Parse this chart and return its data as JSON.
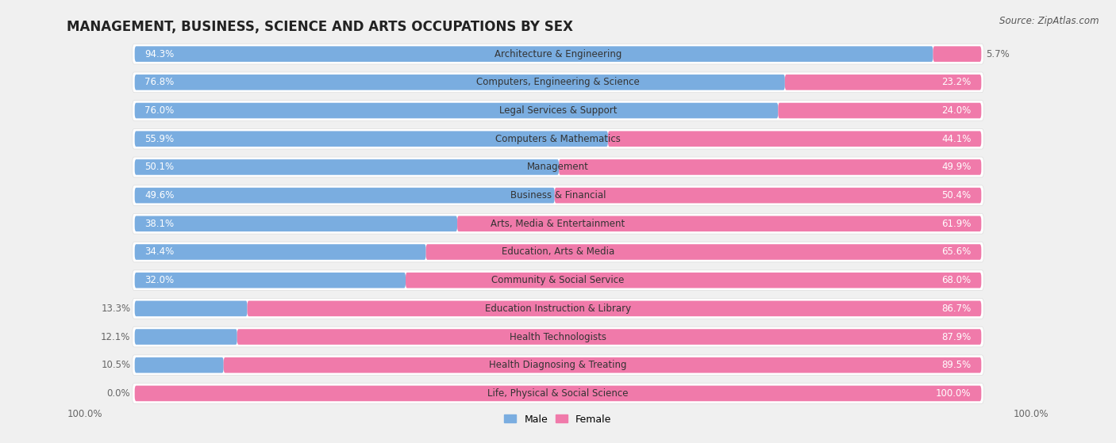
{
  "title": "MANAGEMENT, BUSINESS, SCIENCE AND ARTS OCCUPATIONS BY SEX",
  "source": "Source: ZipAtlas.com",
  "categories": [
    "Architecture & Engineering",
    "Computers, Engineering & Science",
    "Legal Services & Support",
    "Computers & Mathematics",
    "Management",
    "Business & Financial",
    "Arts, Media & Entertainment",
    "Education, Arts & Media",
    "Community & Social Service",
    "Education Instruction & Library",
    "Health Technologists",
    "Health Diagnosing & Treating",
    "Life, Physical & Social Science"
  ],
  "male_pct": [
    94.3,
    76.8,
    76.0,
    55.9,
    50.1,
    49.6,
    38.1,
    34.4,
    32.0,
    13.3,
    12.1,
    10.5,
    0.0
  ],
  "female_pct": [
    5.7,
    23.2,
    24.0,
    44.1,
    49.9,
    50.4,
    61.9,
    65.6,
    68.0,
    86.7,
    87.9,
    89.5,
    100.0
  ],
  "male_color": "#7aade0",
  "female_color": "#f07aaa",
  "row_bg_color": "#ffffff",
  "outer_bg_color": "#f0f0f0",
  "title_fontsize": 12,
  "label_fontsize": 8.5,
  "source_fontsize": 8.5,
  "male_label_color_inside": "#ffffff",
  "male_label_color_outside": "#666666",
  "female_label_color_inside": "#ffffff",
  "female_label_color_outside": "#666666",
  "cat_label_color": "#333333"
}
